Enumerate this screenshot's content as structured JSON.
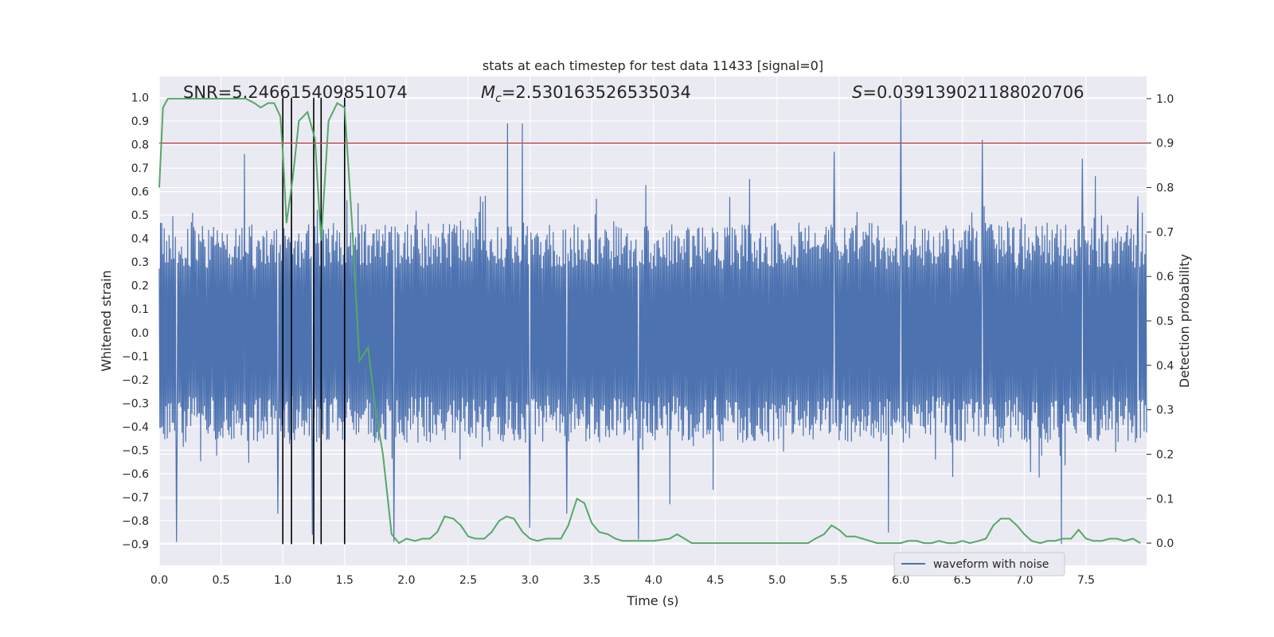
{
  "chart_data": {
    "type": "line",
    "title": "stats at each timestep for test data 11433 [signal=0]",
    "xlabel": "Time (s)",
    "ylabel_left": "Whitened strain",
    "ylabel_right": "Detection probability",
    "xlim": [
      0,
      7.99
    ],
    "ylim_left": [
      -0.99,
      1.09
    ],
    "ylim_right": [
      -0.05,
      1.05
    ],
    "x_ticks": [
      0.0,
      0.5,
      1.0,
      1.5,
      2.0,
      2.5,
      3.0,
      3.5,
      4.0,
      4.5,
      5.0,
      5.5,
      6.0,
      6.5,
      7.0,
      7.5
    ],
    "x_tick_labels": [
      "0.0",
      "0.5",
      "1.0",
      "1.5",
      "2.0",
      "2.5",
      "3.0",
      "3.5",
      "4.0",
      "4.5",
      "5.0",
      "5.5",
      "6.0",
      "6.5",
      "7.0",
      "7.5"
    ],
    "y_left_ticks": [
      -0.9,
      -0.8,
      -0.7,
      -0.6,
      -0.5,
      -0.4,
      -0.3,
      -0.2,
      -0.1,
      0.0,
      0.1,
      0.2,
      0.3,
      0.4,
      0.5,
      0.6,
      0.7,
      0.8,
      0.9,
      1.0
    ],
    "y_left_tick_labels": [
      "−0.9",
      "−0.8",
      "−0.7",
      "−0.6",
      "−0.5",
      "−0.4",
      "−0.3",
      "−0.2",
      "−0.1",
      "0.0",
      "0.1",
      "0.2",
      "0.3",
      "0.4",
      "0.5",
      "0.6",
      "0.7",
      "0.8",
      "0.9",
      "1.0"
    ],
    "y_right_ticks": [
      0.0,
      0.1,
      0.2,
      0.3,
      0.4,
      0.5,
      0.6,
      0.7,
      0.8,
      0.9,
      1.0
    ],
    "y_right_tick_labels": [
      "0.0",
      "0.1",
      "0.2",
      "0.3",
      "0.4",
      "0.5",
      "0.6",
      "0.7",
      "0.8",
      "0.9",
      "1.0"
    ],
    "annotations": {
      "snr": "SNR=5.246615409851074",
      "mc_symbol": "M",
      "mc_sub": "c",
      "mc_value": "=2.530163526535034",
      "s_symbol": "S",
      "s_value": "=0.039139021188020706"
    },
    "legend": {
      "label": "waveform with noise",
      "position": "lower-right"
    },
    "threshold": {
      "value": 0.9,
      "axis": "right",
      "color": "#c44e52"
    },
    "vlines": [
      1.0,
      1.07,
      1.25,
      1.31,
      1.5
    ],
    "vline_range": [
      -0.9,
      1.0
    ],
    "waveform": {
      "name": "waveform with noise",
      "color": "#4c72b0",
      "n_points": 1600,
      "core_amplitude": 0.27,
      "typical_peak_amplitude": 0.45,
      "spikes": [
        {
          "t": 0.14,
          "v": -0.89
        },
        {
          "t": 0.69,
          "v": 0.76
        },
        {
          "t": 0.96,
          "v": -0.77
        },
        {
          "t": 1.24,
          "v": -0.86
        },
        {
          "t": 1.9,
          "v": -0.89
        },
        {
          "t": 2.82,
          "v": 0.89
        },
        {
          "t": 2.94,
          "v": 0.89
        },
        {
          "t": 3.0,
          "v": -0.83
        },
        {
          "t": 3.3,
          "v": -0.77
        },
        {
          "t": 3.88,
          "v": -0.88
        },
        {
          "t": 4.13,
          "v": -0.73
        },
        {
          "t": 5.46,
          "v": 0.77
        },
        {
          "t": 5.9,
          "v": -0.85
        },
        {
          "t": 6.0,
          "v": 1.0
        },
        {
          "t": 6.66,
          "v": 0.82
        },
        {
          "t": 7.3,
          "v": -0.9
        },
        {
          "t": 7.47,
          "v": 0.74
        },
        {
          "t": 7.92,
          "v": 0.58
        }
      ]
    },
    "probability": {
      "name": "detection probability",
      "color": "#55a868",
      "x": [
        0.0,
        0.03,
        0.07,
        0.12,
        0.2,
        0.4,
        0.6,
        0.7,
        0.77,
        0.82,
        0.88,
        0.93,
        0.98,
        1.0,
        1.03,
        1.08,
        1.13,
        1.2,
        1.26,
        1.31,
        1.37,
        1.44,
        1.5,
        1.56,
        1.62,
        1.69,
        1.75,
        1.81,
        1.88,
        1.94,
        2.0,
        2.07,
        2.13,
        2.19,
        2.25,
        2.31,
        2.38,
        2.44,
        2.5,
        2.56,
        2.63,
        2.69,
        2.75,
        2.81,
        2.87,
        2.94,
        3.0,
        3.06,
        3.13,
        3.19,
        3.25,
        3.31,
        3.38,
        3.44,
        3.5,
        3.56,
        3.63,
        3.69,
        3.75,
        3.81,
        3.88,
        4.0,
        4.13,
        4.19,
        4.25,
        4.31,
        4.38,
        4.5,
        4.63,
        4.69,
        4.75,
        4.88,
        5.0,
        5.13,
        5.25,
        5.31,
        5.38,
        5.44,
        5.5,
        5.56,
        5.63,
        5.69,
        5.75,
        5.81,
        5.88,
        5.94,
        6.0,
        6.06,
        6.13,
        6.19,
        6.25,
        6.31,
        6.38,
        6.44,
        6.5,
        6.56,
        6.63,
        6.69,
        6.75,
        6.81,
        6.88,
        6.94,
        7.0,
        7.06,
        7.13,
        7.19,
        7.25,
        7.31,
        7.38,
        7.44,
        7.5,
        7.56,
        7.63,
        7.69,
        7.75,
        7.81,
        7.88,
        7.94
      ],
      "y": [
        0.8,
        0.98,
        1.0,
        1.0,
        1.0,
        1.0,
        1.0,
        1.0,
        0.99,
        0.98,
        0.99,
        0.99,
        0.96,
        0.88,
        0.72,
        0.82,
        0.95,
        0.97,
        0.91,
        0.68,
        0.95,
        0.99,
        0.98,
        0.72,
        0.41,
        0.44,
        0.3,
        0.2,
        0.02,
        0.0,
        0.01,
        0.005,
        0.01,
        0.01,
        0.025,
        0.06,
        0.055,
        0.04,
        0.015,
        0.01,
        0.01,
        0.025,
        0.05,
        0.06,
        0.055,
        0.025,
        0.01,
        0.005,
        0.01,
        0.01,
        0.01,
        0.04,
        0.1,
        0.09,
        0.045,
        0.025,
        0.02,
        0.01,
        0.005,
        0.005,
        0.005,
        0.005,
        0.01,
        0.02,
        0.01,
        0.0,
        0.0,
        0.0,
        0.0,
        0.0,
        0.0,
        0.0,
        0.0,
        0.0,
        0.0,
        0.01,
        0.02,
        0.04,
        0.03,
        0.015,
        0.015,
        0.01,
        0.005,
        0.0,
        0.0,
        0.0,
        0.0,
        0.005,
        0.005,
        0.0,
        0.0,
        0.005,
        0.0,
        0.0,
        0.005,
        0.0,
        0.005,
        0.01,
        0.04,
        0.055,
        0.055,
        0.04,
        0.02,
        0.005,
        0.0,
        0.005,
        0.005,
        0.01,
        0.01,
        0.03,
        0.01,
        0.005,
        0.005,
        0.01,
        0.01,
        0.005,
        0.01,
        0.0
      ]
    }
  }
}
